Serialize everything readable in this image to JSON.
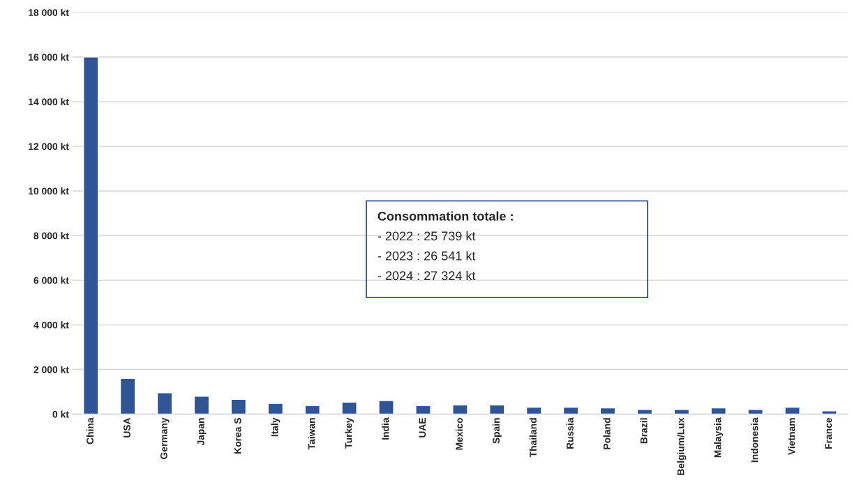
{
  "chart_data": {
    "type": "bar",
    "categories": [
      "China",
      "USA",
      "Germany",
      "Japan",
      "Korea S",
      "Italy",
      "Taiwan",
      "Turkey",
      "India",
      "UAE",
      "Mexico",
      "Spain",
      "Thailand",
      "Russia",
      "Poland",
      "Brazil",
      "Belgium/Lux",
      "Malaysia",
      "Indonesia",
      "Vietnam",
      "France"
    ],
    "values": [
      16000,
      1600,
      960,
      800,
      660,
      480,
      380,
      540,
      610,
      380,
      410,
      410,
      310,
      310,
      280,
      210,
      210,
      280,
      210,
      310,
      150
    ],
    "color": "#2f5597",
    "ylim": [
      0,
      18000
    ],
    "yticks": [
      {
        "value": 0,
        "label": "0 kt"
      },
      {
        "value": 2000,
        "label": "2 000 kt"
      },
      {
        "value": 4000,
        "label": "4 000 kt"
      },
      {
        "value": 6000,
        "label": "6 000 kt"
      },
      {
        "value": 8000,
        "label": "8 000 kt"
      },
      {
        "value": 10000,
        "label": "10 000 kt"
      },
      {
        "value": 12000,
        "label": "12 000 kt"
      },
      {
        "value": 14000,
        "label": "14 000 kt"
      },
      {
        "value": 16000,
        "label": "16 000 kt"
      },
      {
        "value": 18000,
        "label": "18 000 kt"
      }
    ],
    "grid": "y",
    "annotations": [
      "Consommation totale :",
      "- 2022 : 25 739 kt",
      "- 2023 : 26 541 kt",
      "- 2024 : 27 324 kt"
    ]
  }
}
